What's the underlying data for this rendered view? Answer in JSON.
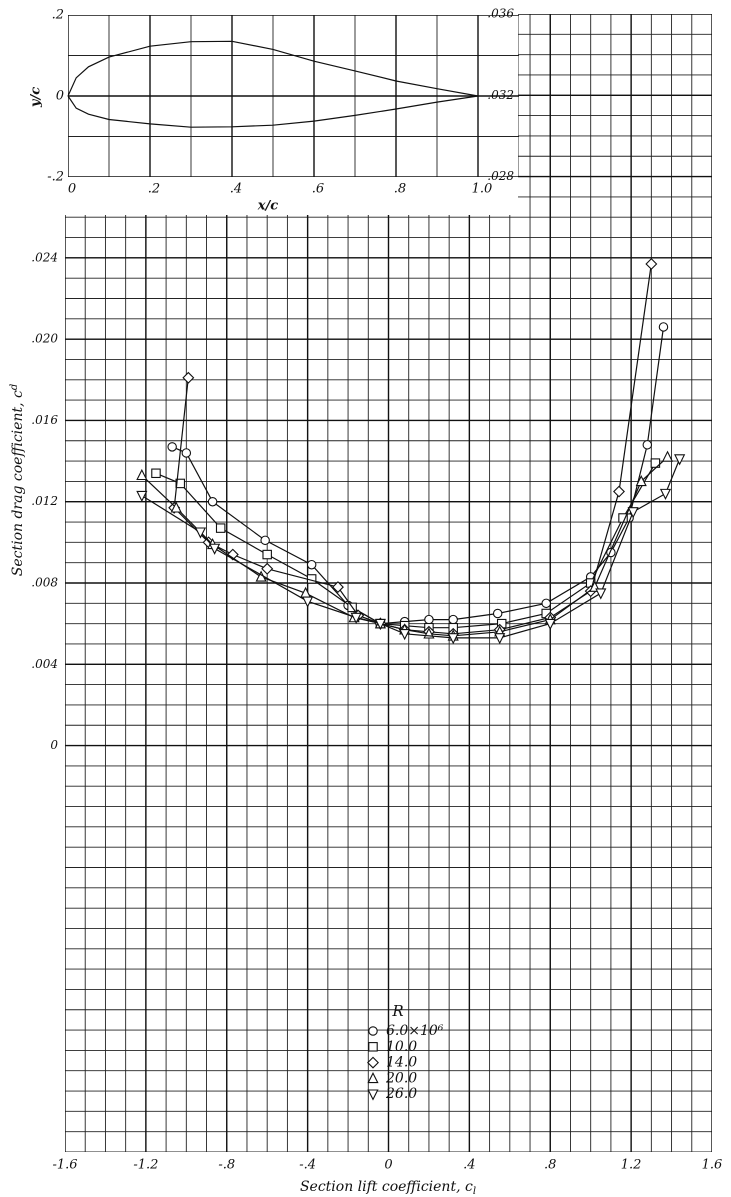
{
  "chart_data": [
    {
      "type": "line",
      "xlabel": "Section lift coefficient, c",
      "xlabel_subscript": "l",
      "ylabel": "Section drag coefficient, c",
      "ylabel_subscript": "d",
      "xlim": [
        -1.6,
        1.6
      ],
      "xticks": [
        -1.6,
        -1.2,
        {
          "value": -0.8,
          "label": "-.8"
        },
        {
          "value": -0.4,
          "label": "-.4"
        },
        0,
        {
          "value": 0.4,
          "label": ".4"
        },
        {
          "value": 0.8,
          "label": ".8"
        },
        1.2,
        1.6
      ],
      "ylim": [
        -0.02,
        0.036
      ],
      "yticks": [
        0,
        {
          "value": 0.004,
          "label": ".004"
        },
        {
          "value": 0.008,
          "label": ".008"
        },
        {
          "value": 0.012,
          "label": ".012"
        },
        {
          "value": 0.016,
          "label": ".016"
        },
        {
          "value": 0.02,
          "label": ".020"
        },
        {
          "value": 0.024,
          "label": ".024"
        },
        {
          "value": 0.028,
          "label": ".028"
        },
        {
          "value": 0.032,
          "label": ".032"
        },
        {
          "value": 0.036,
          "label": ".036"
        }
      ],
      "grid": true,
      "legend_title": "R",
      "series": [
        {
          "name": "6.0×10⁶",
          "marker": "circle",
          "color": "#111111",
          "x": [
            -1.07,
            -1.0,
            -0.87,
            -0.61,
            -0.38,
            -0.2,
            -0.04,
            0.08,
            0.2,
            0.32,
            0.54,
            0.78,
            1.0,
            1.1,
            1.19,
            1.28,
            1.36
          ],
          "values": [
            0.0147,
            0.0144,
            0.012,
            0.0101,
            0.0089,
            0.0069,
            0.006,
            0.0061,
            0.0062,
            0.0062,
            0.0065,
            0.007,
            0.0083,
            0.0095,
            0.0112,
            0.0148,
            0.0206
          ]
        },
        {
          "name": "10.0",
          "marker": "square",
          "color": "#111111",
          "x": [
            -1.15,
            -1.03,
            -0.83,
            -0.6,
            -0.38,
            -0.18,
            -0.04,
            0.08,
            0.2,
            0.32,
            0.56,
            0.78,
            1.0,
            1.16,
            1.32
          ],
          "values": [
            0.0134,
            0.0129,
            0.0107,
            0.0094,
            0.0082,
            0.0068,
            0.006,
            0.0059,
            0.0058,
            0.0058,
            0.006,
            0.0065,
            0.008,
            0.0112,
            0.0139
          ]
        },
        {
          "name": "14.0",
          "marker": "diamond",
          "color": "#111111",
          "x": [
            -0.99,
            -1.06,
            -0.89,
            -0.77,
            -0.6,
            -0.25,
            -0.15,
            -0.04,
            0.08,
            0.2,
            0.32,
            0.55,
            0.8,
            1.0,
            1.14,
            1.3
          ],
          "values": [
            0.0181,
            0.0117,
            0.01,
            0.0094,
            0.0087,
            0.0078,
            0.0064,
            0.006,
            0.0057,
            0.0056,
            0.0055,
            0.0057,
            0.0063,
            0.0076,
            0.0125,
            0.0237
          ]
        },
        {
          "name": "20.0",
          "marker": "triangle-up",
          "color": "#111111",
          "x": [
            -1.22,
            -1.05,
            -0.87,
            -0.63,
            -0.41,
            -0.17,
            -0.04,
            0.08,
            0.2,
            0.32,
            0.55,
            0.8,
            1.02,
            1.25,
            1.38
          ],
          "values": [
            0.0133,
            0.0117,
            0.0099,
            0.0083,
            0.0075,
            0.0063,
            0.006,
            0.0057,
            0.0055,
            0.0054,
            0.0056,
            0.0062,
            0.0078,
            0.013,
            0.0142
          ]
        },
        {
          "name": "26.0",
          "marker": "triangle-down",
          "color": "#111111",
          "x": [
            -1.22,
            -0.93,
            -0.86,
            -0.4,
            -0.16,
            -0.04,
            0.08,
            0.32,
            0.55,
            0.8,
            1.05,
            1.21,
            1.37,
            1.44
          ],
          "values": [
            0.0123,
            0.0105,
            0.0097,
            0.0071,
            0.0063,
            0.006,
            0.0055,
            0.0053,
            0.0053,
            0.006,
            0.0075,
            0.0115,
            0.0124,
            0.0141
          ]
        }
      ]
    },
    {
      "type": "line",
      "xlabel": "x/c",
      "ylabel": "y/c",
      "xlim": [
        0,
        1.1
      ],
      "xticks": [
        0,
        {
          "value": 0.2,
          "label": ".2"
        },
        {
          "value": 0.4,
          "label": ".4"
        },
        {
          "value": 0.6,
          "label": ".6"
        },
        {
          "value": 0.8,
          "label": ".8"
        },
        {
          "value": 1,
          "label": "1.0"
        }
      ],
      "ylim": [
        -0.2,
        0.2
      ],
      "yticks": [
        {
          "value": -0.2,
          "label": "-.2"
        },
        0,
        {
          "value": 0.2,
          "label": ".2"
        }
      ],
      "grid": true,
      "x": [
        0,
        0.02,
        0.05,
        0.1,
        0.2,
        0.3,
        0.4,
        0.5,
        0.6,
        0.7,
        0.8,
        0.9,
        1.0
      ],
      "series": [
        {
          "color": "#111111",
          "values": [
            0,
            0.045,
            0.072,
            0.096,
            0.123,
            0.134,
            0.135,
            0.115,
            0.086,
            0.062,
            0.037,
            0.018,
            0
          ]
        },
        {
          "color": "#111111",
          "values": [
            0,
            -0.03,
            -0.045,
            -0.058,
            -0.069,
            -0.077,
            -0.076,
            -0.072,
            -0.062,
            -0.048,
            -0.032,
            -0.015,
            0
          ]
        }
      ]
    }
  ]
}
